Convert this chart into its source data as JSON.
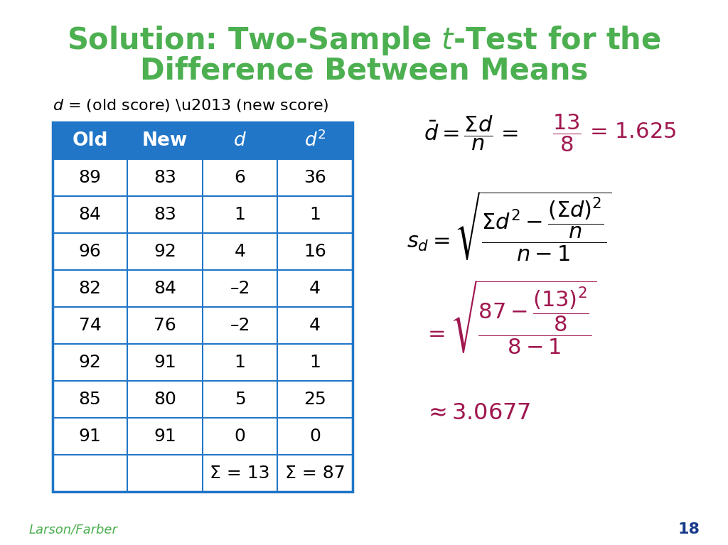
{
  "title_line1": "Solution: Two-Sample $\\mathit{t}$-Test for the",
  "title_line2": "Difference Between Means",
  "title_color": "#4CAF50",
  "background_color": "#FFFFFF",
  "header_bg_color": "#2176C7",
  "header_text_color": "#FFFFFF",
  "table_border_color": "#2176C7",
  "formula_color": "#A0174F",
  "black_color": "#000000",
  "blue_color": "#1A3A8C",
  "green_color": "#4CAF50",
  "table_data": [
    [
      "89",
      "83",
      "6",
      "36"
    ],
    [
      "84",
      "83",
      "1",
      "1"
    ],
    [
      "96",
      "92",
      "4",
      "16"
    ],
    [
      "82",
      "84",
      "–2",
      "4"
    ],
    [
      "74",
      "76",
      "–2",
      "4"
    ],
    [
      "92",
      "91",
      "1",
      "1"
    ],
    [
      "85",
      "80",
      "5",
      "25"
    ],
    [
      "91",
      "91",
      "0",
      "0"
    ]
  ],
  "footer_row": [
    "Σ = 13",
    "Σ = 87"
  ],
  "col_headers": [
    "Old",
    "New",
    "d",
    "d2"
  ],
  "footer_label": "Larson/Farber",
  "page_number": "18",
  "title_fontsize": 30,
  "table_fontsize": 18,
  "formula_fontsize": 20
}
